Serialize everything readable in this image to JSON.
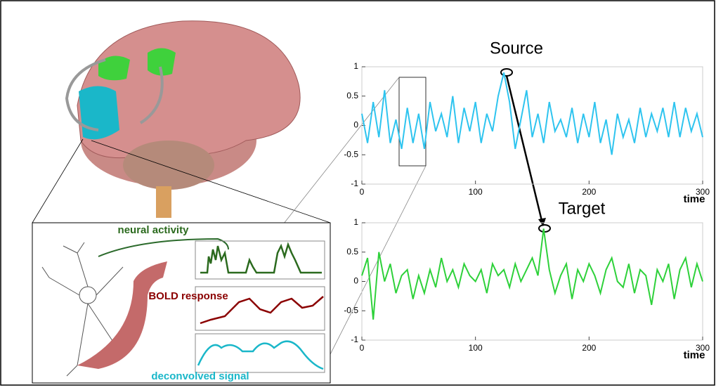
{
  "chart_data": [
    {
      "type": "line",
      "title": "Source",
      "xlabel": "time",
      "xlim": [
        0,
        300
      ],
      "ylim": [
        -1,
        1
      ],
      "xticks": [
        0,
        100,
        200,
        300
      ],
      "yticks": [
        -1,
        -0.5,
        0,
        0.5,
        1
      ],
      "x": [
        0,
        5,
        10,
        15,
        20,
        25,
        30,
        35,
        40,
        45,
        50,
        55,
        60,
        65,
        70,
        75,
        80,
        85,
        90,
        95,
        100,
        105,
        110,
        115,
        120,
        125,
        130,
        135,
        140,
        145,
        150,
        155,
        160,
        165,
        170,
        175,
        180,
        185,
        190,
        195,
        200,
        205,
        210,
        215,
        220,
        225,
        230,
        235,
        240,
        245,
        250,
        255,
        260,
        265,
        270,
        275,
        280,
        285,
        290,
        295,
        300
      ],
      "series": [
        {
          "color": "#2ec4ef",
          "values": [
            0.2,
            -0.3,
            0.4,
            -0.2,
            0.6,
            -0.3,
            0.1,
            -0.4,
            0.3,
            -0.3,
            0.2,
            -0.4,
            0.4,
            -0.1,
            0.2,
            -0.2,
            0.5,
            -0.3,
            0.3,
            -0.1,
            0.4,
            -0.3,
            0.2,
            -0.1,
            0.5,
            0.9,
            0.4,
            -0.4,
            0.1,
            0.6,
            -0.2,
            0.2,
            -0.3,
            0.4,
            -0.1,
            0.1,
            -0.2,
            0.3,
            -0.3,
            0.2,
            -0.2,
            0.4,
            -0.3,
            0.1,
            -0.5,
            0.2,
            -0.2,
            0.1,
            -0.3,
            0.3,
            -0.2,
            0.2,
            -0.1,
            0.3,
            -0.2,
            0.4,
            -0.2,
            0.3,
            -0.1,
            0.2,
            -0.2
          ]
        }
      ]
    },
    {
      "type": "line",
      "title": "Target",
      "xlabel": "time",
      "xlim": [
        0,
        300
      ],
      "ylim": [
        -1,
        1
      ],
      "xticks": [
        0,
        100,
        200,
        300
      ],
      "yticks": [
        -1,
        -0.5,
        0,
        0.5,
        1
      ],
      "x": [
        0,
        5,
        10,
        15,
        20,
        25,
        30,
        35,
        40,
        45,
        50,
        55,
        60,
        65,
        70,
        75,
        80,
        85,
        90,
        95,
        100,
        105,
        110,
        115,
        120,
        125,
        130,
        135,
        140,
        145,
        150,
        155,
        160,
        165,
        170,
        175,
        180,
        185,
        190,
        195,
        200,
        205,
        210,
        215,
        220,
        225,
        230,
        235,
        240,
        245,
        250,
        255,
        260,
        265,
        270,
        275,
        280,
        285,
        290,
        295,
        300
      ],
      "series": [
        {
          "color": "#2ed13a",
          "values": [
            0.1,
            0.4,
            -0.65,
            0.5,
            0.0,
            0.3,
            -0.2,
            0.1,
            0.2,
            -0.3,
            0.1,
            -0.2,
            0.2,
            -0.1,
            0.4,
            0.0,
            0.2,
            -0.1,
            0.3,
            0.1,
            0.0,
            0.2,
            -0.2,
            0.3,
            0.1,
            0.2,
            -0.1,
            0.3,
            0.0,
            0.2,
            0.4,
            0.1,
            0.9,
            0.2,
            -0.2,
            0.1,
            0.3,
            -0.3,
            0.2,
            0.0,
            0.3,
            0.1,
            -0.2,
            0.2,
            0.4,
            0.0,
            -0.1,
            0.3,
            -0.2,
            0.2,
            0.1,
            -0.4,
            0.2,
            0.0,
            0.3,
            -0.3,
            0.2,
            0.4,
            -0.1,
            0.3,
            0.0
          ]
        }
      ]
    }
  ],
  "labels": {
    "neural_activity": "neural activity",
    "bold_response": "BOLD response",
    "deconvolved_signal": "deconvolved signal"
  }
}
